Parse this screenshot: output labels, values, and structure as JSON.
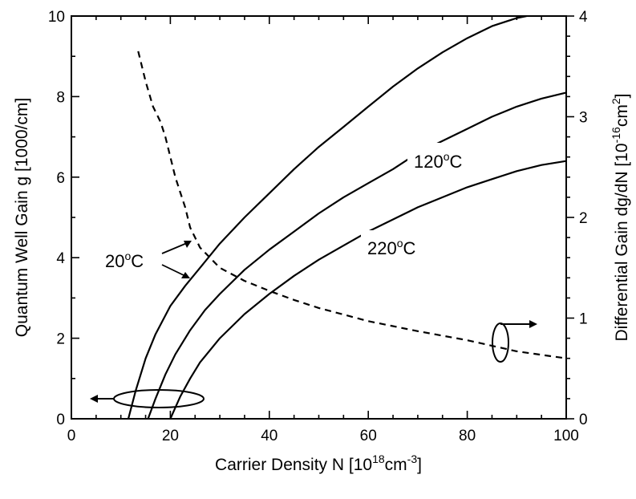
{
  "chart_data": {
    "type": "line",
    "title": "",
    "xlabel": "Carrier Density N [10",
    "xlabel_sup": "18",
    "xlabel_mid": "cm",
    "xlabel_sup2": "-3",
    "xlabel_end": "]",
    "ylabel": "Quantum Well Gain g [1000/cm]",
    "y2label": "Differential Gain dg/dN [10",
    "y2label_sup": "-16",
    "y2label_mid": "cm",
    "y2label_sup2": "2",
    "y2label_end": "]",
    "xlim": [
      0,
      100
    ],
    "ylim": [
      0,
      10
    ],
    "y2lim": [
      0,
      4
    ],
    "x_ticks": [
      "0",
      "20",
      "40",
      "60",
      "80",
      "100"
    ],
    "y_ticks": [
      "0",
      "2",
      "4",
      "6",
      "8",
      "10"
    ],
    "y2_ticks": [
      "0",
      "1",
      "2",
      "3",
      "4"
    ],
    "grid": false,
    "series": [
      {
        "axis": "left",
        "style": "solid",
        "x": [
          11.5,
          13,
          15,
          17,
          20,
          23,
          26,
          30,
          35,
          40,
          45,
          50,
          55,
          60,
          65,
          70,
          75,
          80,
          85,
          90,
          92
        ],
        "y": [
          0,
          0.7,
          1.5,
          2.1,
          2.8,
          3.3,
          3.75,
          4.35,
          5.0,
          5.6,
          6.2,
          6.75,
          7.25,
          7.75,
          8.25,
          8.7,
          9.1,
          9.45,
          9.75,
          9.95,
          10.0
        ]
      },
      {
        "axis": "left",
        "style": "solid",
        "x": [
          15.5,
          17,
          19,
          21,
          24,
          27,
          30,
          35,
          40,
          45,
          50,
          55,
          60,
          65,
          70,
          75,
          80,
          85,
          90,
          95,
          100
        ],
        "y": [
          0,
          0.5,
          1.1,
          1.6,
          2.2,
          2.7,
          3.1,
          3.7,
          4.2,
          4.65,
          5.1,
          5.5,
          5.85,
          6.2,
          6.6,
          6.9,
          7.2,
          7.5,
          7.75,
          7.95,
          8.1
        ]
      },
      {
        "axis": "left",
        "style": "solid",
        "x": [
          20,
          22,
          24,
          26,
          30,
          35,
          40,
          45,
          50,
          55,
          60,
          65,
          70,
          75,
          80,
          85,
          90,
          95,
          100
        ],
        "y": [
          0,
          0.55,
          1.0,
          1.4,
          2.0,
          2.6,
          3.1,
          3.55,
          3.95,
          4.3,
          4.65,
          4.95,
          5.25,
          5.5,
          5.75,
          5.95,
          6.15,
          6.3,
          6.4
        ]
      },
      {
        "axis": "right",
        "style": "dashed",
        "x": [
          13.5,
          15,
          16.5,
          18,
          19,
          20,
          21,
          22,
          23,
          24,
          26,
          28,
          30,
          35,
          40,
          45,
          50,
          60,
          70,
          80,
          90,
          100
        ],
        "y": [
          3.65,
          3.35,
          3.1,
          2.95,
          2.8,
          2.6,
          2.4,
          2.25,
          2.1,
          1.9,
          1.7,
          1.6,
          1.5,
          1.37,
          1.27,
          1.18,
          1.1,
          0.97,
          0.87,
          0.78,
          0.67,
          0.6
        ]
      }
    ],
    "annotations": [
      {
        "text": "120",
        "deg": "o",
        "unit": "C"
      },
      {
        "text": "220",
        "deg": "o",
        "unit": "C"
      },
      {
        "text": "20",
        "deg": "o",
        "unit": "C"
      }
    ]
  }
}
